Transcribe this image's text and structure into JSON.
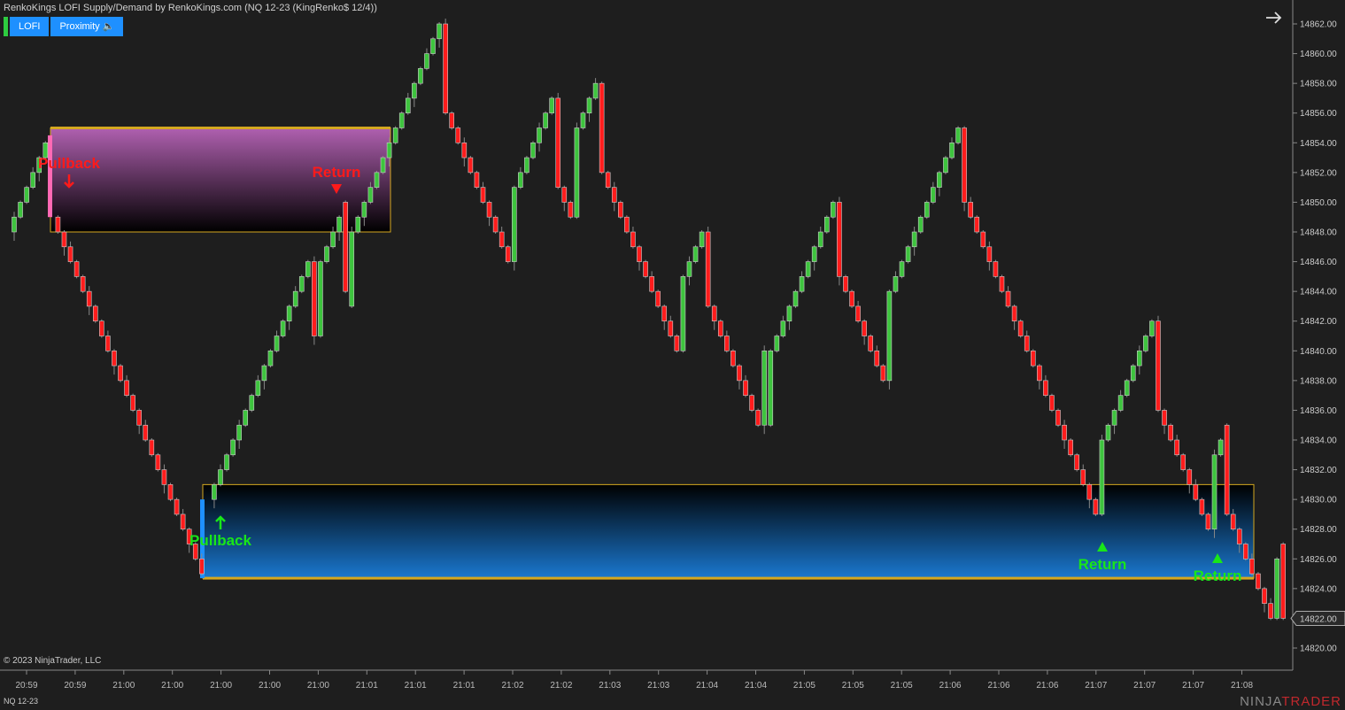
{
  "header": {
    "title": "RenkoKings LOFI Supply/Demand by RenkoKings.com (NQ 12-23 (KingRenko$ 12/4))",
    "buttons": [
      {
        "label": "LOFI"
      },
      {
        "label": "Proximity 🔈"
      }
    ],
    "accent_color": "#2ecc40"
  },
  "footer": {
    "copyright": "© 2023 NinjaTrader, LLC",
    "symbol": "NQ 12-23",
    "logo_a": "NINJA",
    "logo_b": "TRADER"
  },
  "chart_data": {
    "type": "candlestick",
    "ylim": [
      14819,
      14863
    ],
    "y_ticks": [
      14820,
      14822,
      14824,
      14826,
      14828,
      14830,
      14832,
      14834,
      14836,
      14838,
      14840,
      14842,
      14844,
      14846,
      14848,
      14850,
      14852,
      14854,
      14856,
      14858,
      14860,
      14862
    ],
    "x_tick_labels": [
      "20:59",
      "20:59",
      "21:00",
      "21:00",
      "21:00",
      "21:00",
      "21:00",
      "21:01",
      "21:01",
      "21:01",
      "21:02",
      "21:02",
      "21:03",
      "21:03",
      "21:04",
      "21:04",
      "21:05",
      "21:05",
      "21:05",
      "21:06",
      "21:06",
      "21:06",
      "21:07",
      "21:07",
      "21:07",
      "21:08"
    ],
    "current_price": "14822.00",
    "colors": {
      "up": "#3ec43e",
      "down": "#ff1c1c",
      "supply_zone": "#b060b0",
      "demand_zone": "#1a78d0",
      "zone_border": "#d4a820"
    },
    "candle_runs": [
      {
        "from": 14848,
        "to": 14854
      },
      {
        "gap": "supply-marker"
      },
      {
        "from": 14849,
        "to": 14825
      },
      {
        "gap": "demand-marker"
      },
      {
        "from": 14830,
        "to": 14846
      },
      {
        "o": 14846,
        "c": 14841
      },
      {
        "o": 14841,
        "c": 14846
      },
      {
        "from": 14846,
        "to": 14849
      },
      {
        "o": 14850,
        "c": 14844
      },
      {
        "o": 14843,
        "c": 14848
      },
      {
        "from": 14848,
        "to": 14862
      },
      {
        "o": 14862,
        "c": 14856
      },
      {
        "from": 14856,
        "to": 14846
      },
      {
        "o": 14846,
        "c": 14851
      },
      {
        "from": 14851,
        "to": 14857
      },
      {
        "o": 14857,
        "c": 14851
      },
      {
        "from": 14851,
        "to": 14849
      },
      {
        "o": 14849,
        "c": 14855
      },
      {
        "from": 14855,
        "to": 14858
      },
      {
        "o": 14858,
        "c": 14852
      },
      {
        "from": 14852,
        "to": 14840
      },
      {
        "o": 14840,
        "c": 14845
      },
      {
        "from": 14845,
        "to": 14848
      },
      {
        "o": 14848,
        "c": 14843
      },
      {
        "from": 14843,
        "to": 14835
      },
      {
        "o": 14835,
        "c": 14840
      },
      {
        "o": 14835,
        "c": 14840
      },
      {
        "from": 14840,
        "to": 14850
      },
      {
        "o": 14850,
        "c": 14845
      },
      {
        "from": 14845,
        "to": 14838
      },
      {
        "o": 14838,
        "c": 14844
      },
      {
        "from": 14844,
        "to": 14855
      },
      {
        "o": 14855,
        "c": 14850
      },
      {
        "from": 14850,
        "to": 14829
      },
      {
        "o": 14829,
        "c": 14834
      },
      {
        "from": 14834,
        "to": 14842
      },
      {
        "o": 14842,
        "c": 14836
      },
      {
        "from": 14836,
        "to": 14828
      },
      {
        "o": 14828,
        "c": 14833
      },
      {
        "from": 14833,
        "to": 14834
      },
      {
        "o": 14835,
        "c": 14829
      },
      {
        "from": 14829,
        "to": 14822
      },
      {
        "o": 14822,
        "c": 14826
      },
      {
        "o": 14827,
        "c": 14822
      }
    ],
    "zones": [
      {
        "type": "supply",
        "top": 14855,
        "bottom": 14848
      },
      {
        "type": "demand",
        "top": 14831,
        "bottom": 14824.7
      }
    ],
    "annotations": [
      {
        "text": "Pullback",
        "color": "#ff1a1a",
        "marker": "arrow-down"
      },
      {
        "text": "Return",
        "color": "#ff1a1a",
        "marker": "triangle-down"
      },
      {
        "text": "Pullback",
        "color": "#19e619",
        "marker": "arrow-up"
      },
      {
        "text": "Return",
        "color": "#19e619",
        "marker": "triangle-up"
      },
      {
        "text": "Return",
        "color": "#19e619",
        "marker": "triangle-up"
      }
    ]
  }
}
